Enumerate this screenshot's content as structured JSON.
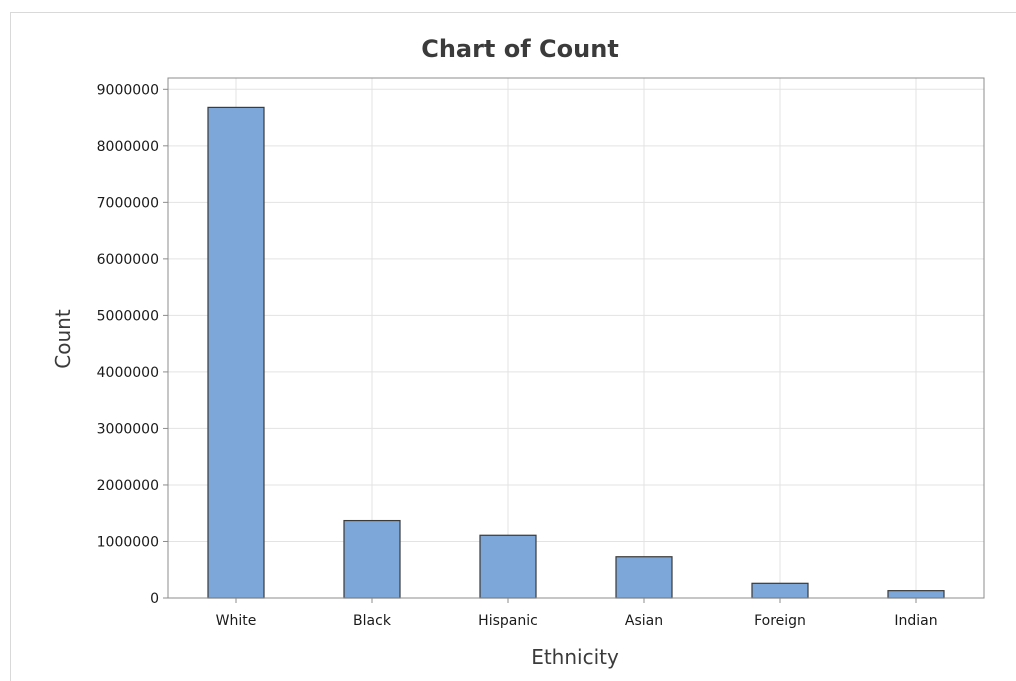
{
  "chart_data": {
    "type": "bar",
    "title": "Chart of Count",
    "xlabel": "Ethnicity",
    "ylabel": "Count",
    "categories": [
      "White",
      "Black",
      "Hispanic",
      "Asian",
      "Foreign",
      "Indian"
    ],
    "values": [
      8680000,
      1370000,
      1110000,
      730000,
      260000,
      130000
    ],
    "ylim": [
      0,
      9200000
    ],
    "yticks": [
      0,
      1000000,
      2000000,
      3000000,
      4000000,
      5000000,
      6000000,
      7000000,
      8000000,
      9000000
    ],
    "ytick_labels": [
      "0",
      "1000000",
      "2000000",
      "3000000",
      "4000000",
      "5000000",
      "6000000",
      "7000000",
      "8000000",
      "9000000"
    ],
    "grid": true,
    "legend": "none",
    "colors": {
      "bar_fill": "#7da7d9",
      "bar_stroke": "#3a3a3a",
      "grid": "#e3e3e3",
      "axis": "#8c8c8c"
    }
  }
}
